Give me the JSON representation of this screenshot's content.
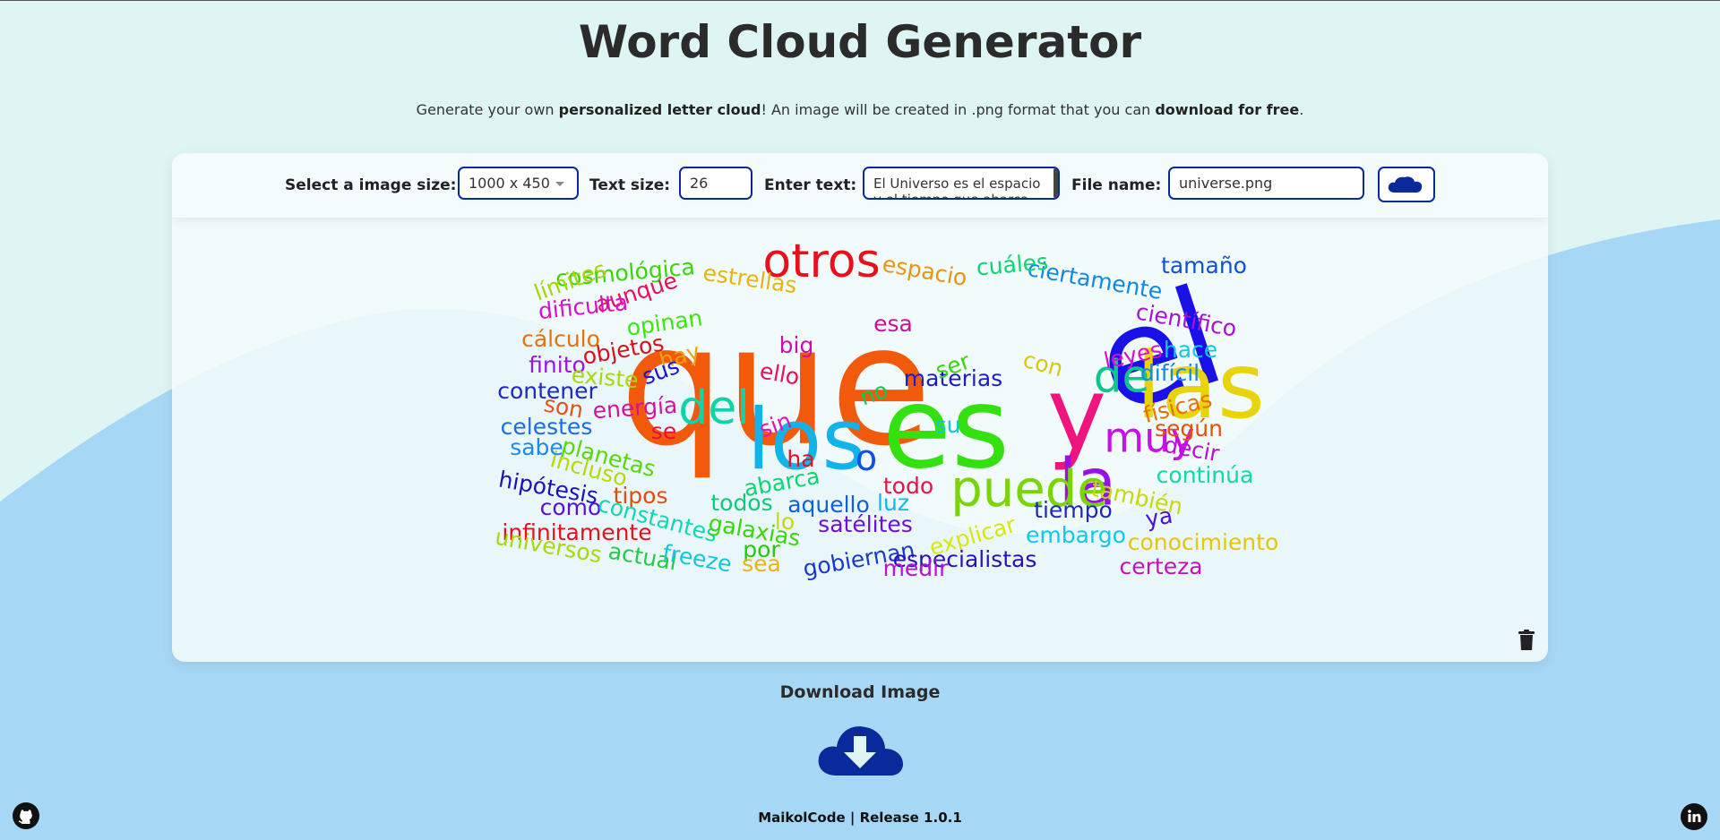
{
  "header": {
    "title": "Word Cloud Generator",
    "subtitle_parts": [
      "Generate your own ",
      "personalized letter cloud",
      "! An image will be created in .png format that you can ",
      "download for free",
      "."
    ]
  },
  "toolbar": {
    "size_label": "Select a image size:",
    "size_value": "1000 x 450",
    "text_size_label": "Text size:",
    "text_size_value": "26",
    "text_label": "Enter text:",
    "text_value": "El Universo es el espacio y el tiempo que abarca",
    "filename_label": "File name:",
    "filename_value": "universe.png",
    "generate_icon": "cloud-icon"
  },
  "wordcloud": {
    "words": [
      {
        "t": "que",
        "c": "#f05a0a",
        "s": 185
      },
      {
        "t": "el",
        "c": "#1a10e8",
        "s": 150
      },
      {
        "t": "es",
        "c": "#35e010",
        "s": 125
      },
      {
        "t": "y",
        "c": "#f0147e",
        "s": 112
      },
      {
        "t": "las",
        "c": "#e8d40a",
        "s": 102
      },
      {
        "t": "los",
        "c": "#10b4e8",
        "s": 94
      },
      {
        "t": "la",
        "c": "#9a10e8",
        "s": 72
      },
      {
        "t": "puede",
        "c": "#7ad40a",
        "s": 56
      },
      {
        "t": "otros",
        "c": "#e8101c",
        "s": 52
      },
      {
        "t": "del",
        "c": "#10d4a8",
        "s": 52
      },
      {
        "t": "de",
        "c": "#10c48a",
        "s": 50
      },
      {
        "t": "muy",
        "c": "#c810e8",
        "s": 46
      },
      {
        "t": "o",
        "c": "#1050e8",
        "s": 40
      },
      {
        "t": "materias",
        "c": "#1c1cc8",
        "s": 25
      },
      {
        "t": "cosmológica",
        "c": "#3ad40a",
        "s": 25
      },
      {
        "t": "ciertamente",
        "c": "#1088e8",
        "s": 25
      },
      {
        "t": "espacio",
        "c": "#e89410",
        "s": 25
      },
      {
        "t": "cuáles",
        "c": "#10d470",
        "s": 25
      },
      {
        "t": "tamaño",
        "c": "#1050d8",
        "s": 25
      },
      {
        "t": "límites",
        "c": "#a8d40a",
        "s": 25
      },
      {
        "t": "aunque",
        "c": "#e8105a",
        "s": 25
      },
      {
        "t": "estrellas",
        "c": "#e8b410",
        "s": 25
      },
      {
        "t": "dificulta",
        "c": "#d810c8",
        "s": 25
      },
      {
        "t": "opinan",
        "c": "#3ae810",
        "s": 25
      },
      {
        "t": "esa",
        "c": "#c8109a",
        "s": 25
      },
      {
        "t": "científico",
        "c": "#a810d8",
        "s": 25
      },
      {
        "t": "cálculo",
        "c": "#e8700a",
        "s": 25
      },
      {
        "t": "objetos",
        "c": "#d8101c",
        "s": 25
      },
      {
        "t": "big",
        "c": "#c810a8",
        "s": 25
      },
      {
        "t": "leyes",
        "c": "#d810c8",
        "s": 25
      },
      {
        "t": "hace",
        "c": "#10c8e8",
        "s": 25
      },
      {
        "t": "hay",
        "c": "#e8a410",
        "s": 25
      },
      {
        "t": "finito",
        "c": "#a010e8",
        "s": 25
      },
      {
        "t": "sus",
        "c": "#1c10d8",
        "s": 25
      },
      {
        "t": "ser",
        "c": "#3ad410",
        "s": 25
      },
      {
        "t": "con",
        "c": "#d8c80a",
        "s": 25
      },
      {
        "t": "difícil",
        "c": "#1088e8",
        "s": 25
      },
      {
        "t": "existe",
        "c": "#a8d80a",
        "s": 25
      },
      {
        "t": "ello",
        "c": "#e8105a",
        "s": 25
      },
      {
        "t": "contener",
        "c": "#1c28c8",
        "s": 25
      },
      {
        "t": "no",
        "c": "#10c858",
        "s": 25
      },
      {
        "t": "son",
        "c": "#e8501c",
        "s": 25
      },
      {
        "t": "energía",
        "c": "#d8109a",
        "s": 25
      },
      {
        "t": "físicas",
        "c": "#e8700a",
        "s": 25
      },
      {
        "t": "celestes",
        "c": "#1a6ce8",
        "s": 25
      },
      {
        "t": "su",
        "c": "#10c8d8",
        "s": 25
      },
      {
        "t": "sin",
        "c": "#e810b4",
        "s": 25
      },
      {
        "t": "según",
        "c": "#e8500a",
        "s": 25
      },
      {
        "t": "se",
        "c": "#e8103a",
        "s": 25
      },
      {
        "t": "sabe",
        "c": "#1a8ce8",
        "s": 25
      },
      {
        "t": "planetas",
        "c": "#58d80a",
        "s": 25
      },
      {
        "t": "decir",
        "c": "#b810d8",
        "s": 25
      },
      {
        "t": "incluso",
        "c": "#b8d80a",
        "s": 25
      },
      {
        "t": "ha",
        "c": "#e8101c",
        "s": 25
      },
      {
        "t": "continúa",
        "c": "#10d8a8",
        "s": 25
      },
      {
        "t": "hipótesis",
        "c": "#1c10b8",
        "s": 25
      },
      {
        "t": "abarca",
        "c": "#10d470",
        "s": 25
      },
      {
        "t": "todo",
        "c": "#e81046",
        "s": 25
      },
      {
        "t": "tipos",
        "c": "#e84a0a",
        "s": 25
      },
      {
        "t": "también",
        "c": "#c8d80a",
        "s": 25
      },
      {
        "t": "como",
        "c": "#5a10d8",
        "s": 25
      },
      {
        "t": "todos",
        "c": "#10c87a",
        "s": 25
      },
      {
        "t": "aquello",
        "c": "#1060d8",
        "s": 25
      },
      {
        "t": "luz",
        "c": "#10b8e8",
        "s": 25
      },
      {
        "t": "tiempo",
        "c": "#1c28b8",
        "s": 25
      },
      {
        "t": "constantes",
        "c": "#10d8b4",
        "s": 25
      },
      {
        "t": "ya",
        "c": "#4a10d8",
        "s": 25
      },
      {
        "t": "infinitamente",
        "c": "#e8101c",
        "s": 25
      },
      {
        "t": "lo",
        "c": "#c8d80a",
        "s": 25
      },
      {
        "t": "galaxias",
        "c": "#3ad410",
        "s": 25
      },
      {
        "t": "satélites",
        "c": "#6a10d8",
        "s": 25
      },
      {
        "t": "embargo",
        "c": "#10c8e8",
        "s": 25
      },
      {
        "t": "conocimiento",
        "c": "#e8c40a",
        "s": 25
      },
      {
        "t": "explicar",
        "c": "#d8e80a",
        "s": 25
      },
      {
        "t": "universos",
        "c": "#a8d80a",
        "s": 25
      },
      {
        "t": "por",
        "c": "#28c810",
        "s": 25
      },
      {
        "t": "actual",
        "c": "#28c84a",
        "s": 25
      },
      {
        "t": "freeze",
        "c": "#10c8d8",
        "s": 25
      },
      {
        "t": "gobiernan",
        "c": "#1c38c8",
        "s": 25
      },
      {
        "t": "especialistas",
        "c": "#2a10b8",
        "s": 25
      },
      {
        "t": "sea",
        "c": "#e8b410",
        "s": 25
      },
      {
        "t": "medir",
        "c": "#b810d8",
        "s": 25
      },
      {
        "t": "certeza",
        "c": "#c810b8",
        "s": 25
      }
    ]
  },
  "actions": {
    "trash_icon": "trash-icon",
    "download_label": "Download Image",
    "download_icon": "cloud-download-icon"
  },
  "footer": {
    "text": "MaikolCode | Release 1.0.1",
    "github_icon": "github-icon",
    "linkedin_icon": "linkedin-icon"
  },
  "colors": {
    "background_top": "#dff5f4",
    "background_wave": "#a6d8f6",
    "accent": "#0a2a9c",
    "title": "#2b2b2b"
  }
}
